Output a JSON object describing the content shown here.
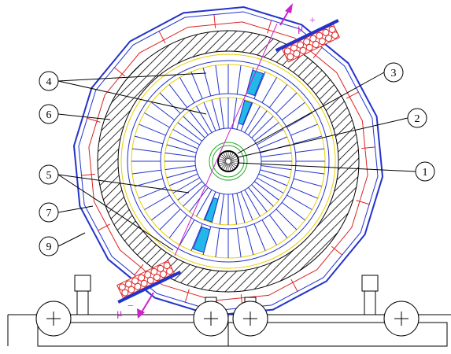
{
  "callouts": [
    {
      "label": "1"
    },
    {
      "label": "2"
    },
    {
      "label": "3"
    },
    {
      "label": "4"
    },
    {
      "label": "5"
    },
    {
      "label": "6"
    },
    {
      "label": "7"
    },
    {
      "label": "9"
    }
  ],
  "muons": [
    {
      "base": "μ",
      "sign": "+"
    },
    {
      "base": "μ",
      "sign": "−"
    }
  ]
}
